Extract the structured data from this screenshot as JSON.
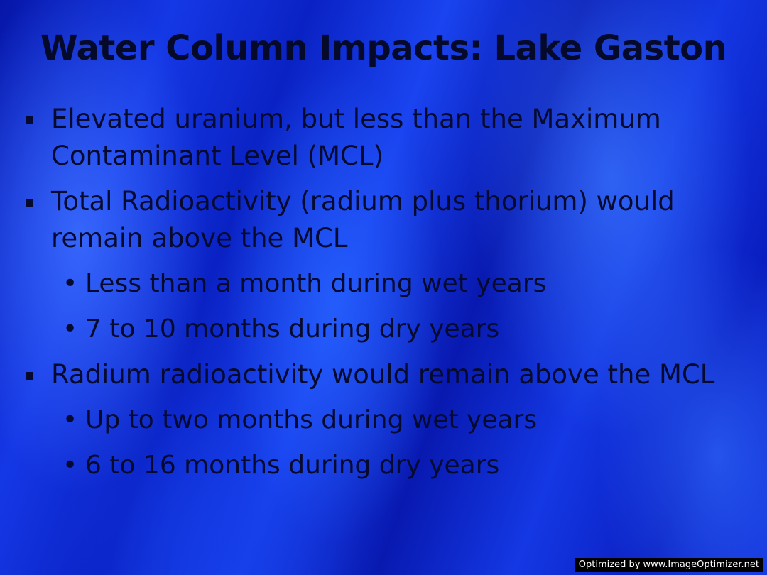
{
  "slide": {
    "title": "Water Column Impacts: Lake Gaston",
    "bullets": [
      {
        "text": "Elevated uranium, but less than the Maximum Contaminant Level (MCL)",
        "sub": []
      },
      {
        "text": "Total Radioactivity (radium plus thorium) would remain above the MCL",
        "sub": [
          "Less than a month during wet years",
          "7 to 10 months during dry years"
        ]
      },
      {
        "text": "Radium radioactivity would remain above the MCL",
        "sub": [
          "Up to two months during wet years",
          "6 to 16 months during dry years"
        ]
      }
    ],
    "sub_bullet_glyph": "•"
  },
  "footer": {
    "watermark": "Optimized by www.ImageOptimizer.net"
  },
  "colors": {
    "background_accent": "#1538e6",
    "text": "#060a2e"
  },
  "icons": {
    "level1_marker": "square-bullet-icon",
    "level2_marker": "round-bullet-icon"
  }
}
